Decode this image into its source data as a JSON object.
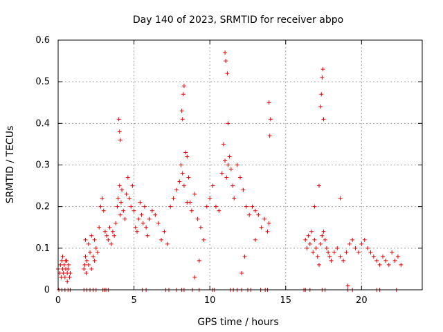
{
  "chart_data": {
    "type": "scatter",
    "title": "Day 140 of 2023, SRMTID for receiver abpo",
    "xlabel": "GPS time / hours",
    "ylabel": "SRMTID / TECUs",
    "xlim": [
      0,
      24
    ],
    "ylim": [
      0,
      0.6
    ],
    "xticks": [
      0,
      5,
      10,
      15,
      20
    ],
    "xtick_labels": [
      "0",
      "5",
      "10",
      "15",
      "20"
    ],
    "yticks": [
      0,
      0.1,
      0.2,
      0.3,
      0.4,
      0.5,
      0.6
    ],
    "ytick_labels": [
      "0",
      "0.1",
      "0.2",
      "0.3",
      "0.4",
      "0.5",
      "0.6"
    ],
    "grid": true,
    "marker": "+",
    "color": "#e00000",
    "series": [
      {
        "name": "SRMTID",
        "x": [
          0.0,
          0.1,
          0.15,
          0.2,
          0.25,
          0.3,
          0.35,
          0.4,
          0.45,
          0.5,
          0.55,
          0.6,
          0.65,
          0.7,
          0.75,
          0.8,
          0.3,
          0.5,
          0.6,
          1.7,
          1.75,
          1.8,
          1.85,
          1.9,
          2.0,
          2.1,
          2.2,
          2.3,
          2.4,
          2.5,
          2.6,
          1.8,
          2.0,
          2.2,
          2.4,
          2.7,
          2.8,
          2.9,
          3.0,
          3.1,
          3.2,
          3.3,
          3.4,
          3.5,
          3.6,
          3.7,
          3.8,
          3.9,
          3.95,
          4.05,
          4.1,
          4.15,
          4.2,
          4.3,
          4.4,
          4.5,
          4.6,
          4.7,
          4.8,
          4.9,
          5.0,
          5.1,
          5.2,
          5.3,
          5.4,
          5.5,
          5.6,
          5.7,
          5.8,
          5.9,
          6.0,
          6.2,
          6.4,
          6.6,
          6.8,
          7.0,
          7.2,
          7.4,
          7.6,
          7.8,
          8.0,
          8.1,
          8.2,
          8.3,
          8.4,
          8.5,
          8.6,
          8.7,
          8.8,
          9.0,
          9.2,
          9.4,
          9.6,
          9.8,
          10.0,
          10.2,
          10.4,
          10.6,
          10.8,
          11.0,
          11.1,
          11.2,
          11.3,
          11.4,
          11.5,
          11.6,
          11.8,
          12.0,
          12.2,
          12.4,
          12.6,
          12.8,
          13.0,
          13.2,
          13.4,
          13.6,
          13.8,
          13.9,
          16.3,
          16.4,
          16.5,
          16.6,
          16.7,
          16.8,
          16.9,
          17.0,
          17.1,
          17.2,
          17.3,
          17.4,
          17.5,
          17.6,
          17.7,
          17.8,
          17.9,
          18.0,
          18.2,
          18.4,
          18.6,
          18.8,
          19.0,
          19.2,
          19.4,
          19.6,
          19.8,
          20.0,
          20.2,
          20.4,
          20.6,
          20.8,
          21.0,
          21.2,
          21.4,
          21.6,
          21.8,
          22.0,
          22.2,
          22.4,
          22.6,
          11.0,
          11.05,
          11.15,
          8.15,
          8.25,
          8.3,
          8.2,
          4.05,
          4.1,
          4.0,
          17.3,
          17.35,
          17.4,
          17.45,
          17.5,
          13.95,
          14.0,
          13.9,
          10.9,
          11.2,
          12.3,
          9.0,
          9.3,
          12.1,
          13.0,
          16.9,
          17.2,
          8.5,
          19.1,
          18.6
        ],
        "y": [
          0.05,
          0.04,
          0.06,
          0.03,
          0.07,
          0.05,
          0.04,
          0.06,
          0.03,
          0.05,
          0.07,
          0.04,
          0.05,
          0.06,
          0.03,
          0.04,
          0.08,
          0.07,
          0.02,
          0.05,
          0.06,
          0.08,
          0.04,
          0.07,
          0.06,
          0.09,
          0.05,
          0.08,
          0.07,
          0.1,
          0.09,
          0.12,
          0.11,
          0.13,
          0.12,
          0.15,
          0.2,
          0.22,
          0.19,
          0.14,
          0.13,
          0.12,
          0.15,
          0.11,
          0.14,
          0.13,
          0.16,
          0.2,
          0.22,
          0.25,
          0.18,
          0.21,
          0.24,
          0.19,
          0.17,
          0.23,
          0.27,
          0.22,
          0.2,
          0.25,
          0.19,
          0.15,
          0.14,
          0.17,
          0.21,
          0.18,
          0.16,
          0.2,
          0.15,
          0.13,
          0.17,
          0.19,
          0.18,
          0.16,
          0.12,
          0.14,
          0.11,
          0.2,
          0.22,
          0.24,
          0.26,
          0.3,
          0.28,
          0.25,
          0.33,
          0.32,
          0.27,
          0.21,
          0.19,
          0.23,
          0.17,
          0.15,
          0.12,
          0.2,
          0.22,
          0.25,
          0.2,
          0.19,
          0.28,
          0.31,
          0.27,
          0.3,
          0.32,
          0.29,
          0.25,
          0.22,
          0.3,
          0.27,
          0.24,
          0.2,
          0.18,
          0.2,
          0.19,
          0.18,
          0.15,
          0.17,
          0.14,
          0.16,
          0.12,
          0.1,
          0.13,
          0.11,
          0.14,
          0.09,
          0.12,
          0.1,
          0.08,
          0.06,
          0.11,
          0.13,
          0.14,
          0.12,
          0.1,
          0.09,
          0.08,
          0.07,
          0.09,
          0.1,
          0.08,
          0.07,
          0.09,
          0.11,
          0.12,
          0.1,
          0.09,
          0.11,
          0.12,
          0.1,
          0.09,
          0.08,
          0.07,
          0.06,
          0.08,
          0.07,
          0.06,
          0.09,
          0.07,
          0.08,
          0.06,
          0.57,
          0.55,
          0.52,
          0.43,
          0.47,
          0.49,
          0.41,
          0.38,
          0.36,
          0.41,
          0.44,
          0.47,
          0.51,
          0.53,
          0.41,
          0.37,
          0.41,
          0.45,
          0.35,
          0.4,
          0.08,
          0.03,
          0.07,
          0.04,
          0.12,
          0.2,
          0.25,
          0.21,
          0.01,
          0.22
        ]
      }
    ],
    "zero_markers_x": [
      0.05,
      0.25,
      0.45,
      0.65,
      0.8,
      1.7,
      1.9,
      2.1,
      2.3,
      2.5,
      2.95,
      3.05,
      3.15,
      3.3,
      5.55,
      5.8,
      7.1,
      7.3,
      7.8,
      8.15,
      8.3,
      8.85,
      9.3,
      10.2,
      10.3,
      11.35,
      11.55,
      11.8,
      12.1,
      12.5,
      12.7,
      13.35,
      13.65,
      13.8,
      16.2,
      16.3,
      16.6,
      17.4,
      17.6,
      19.1,
      19.4,
      21.0,
      21.2,
      22.3
    ]
  }
}
